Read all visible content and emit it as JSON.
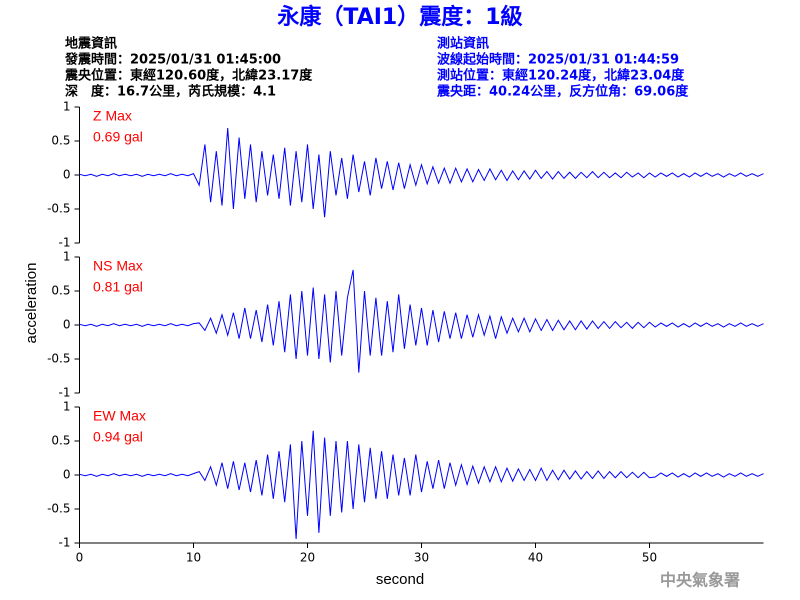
{
  "header": {
    "title": "永康（TAI1）震度：1級",
    "left": [
      "地震資訊",
      "發震時間：2025/01/31 01:45:00",
      "震央位置：東經120.60度，北緯23.17度",
      "深　度：16.7公里，芮氏規模：4.1"
    ],
    "right": [
      "測站資訊",
      "波線起始時間：2025/01/31 01:44:59",
      "測站位置：東經120.24度，北緯23.04度",
      "震央距：40.24公里，反方位角：69.06度"
    ]
  },
  "footer": "中央氣象署",
  "chart_data": [
    {
      "type": "line",
      "annotations": [
        "Z Max",
        "0.69 gal"
      ],
      "color": "#0000ff",
      "xlim": [
        0,
        60
      ],
      "ylim": [
        -1,
        1
      ],
      "yticks": [
        1,
        0.5,
        0,
        -0.5,
        -1
      ],
      "x": [
        0,
        0.5,
        1,
        1.5,
        2,
        2.5,
        3,
        3.5,
        4,
        4.5,
        5,
        5.5,
        6,
        6.5,
        7,
        7.5,
        8,
        8.5,
        9,
        9.5,
        10,
        10.5,
        11,
        11.5,
        12,
        12.5,
        13,
        13.5,
        14,
        14.5,
        15,
        15.5,
        16,
        16.5,
        17,
        17.5,
        18,
        18.5,
        19,
        19.5,
        20,
        20.5,
        21,
        21.5,
        22,
        22.5,
        23,
        23.5,
        24,
        24.5,
        25,
        25.5,
        26,
        26.5,
        27,
        27.5,
        28,
        28.5,
        29,
        29.5,
        30,
        30.5,
        31,
        31.5,
        32,
        32.5,
        33,
        33.5,
        34,
        34.5,
        35,
        35.5,
        36,
        36.5,
        37,
        37.5,
        38,
        38.5,
        39,
        39.5,
        40,
        40.5,
        41,
        41.5,
        42,
        42.5,
        43,
        43.5,
        44,
        44.5,
        45,
        45.5,
        46,
        46.5,
        47,
        47.5,
        48,
        48.5,
        49,
        49.5,
        50,
        50.5,
        51,
        51.5,
        52,
        52.5,
        53,
        53.5,
        54,
        54.5,
        55,
        55.5,
        56,
        56.5,
        57,
        57.5,
        58,
        58.5,
        59,
        59.5,
        60
      ],
      "values": [
        0.01,
        -0.01,
        0.01,
        -0.02,
        0.01,
        -0.01,
        0.02,
        -0.01,
        0.01,
        -0.01,
        0.01,
        -0.02,
        0.01,
        -0.01,
        0.01,
        -0.01,
        0.02,
        -0.01,
        0.01,
        -0.01,
        0.02,
        -0.15,
        0.45,
        -0.4,
        0.35,
        -0.45,
        0.69,
        -0.5,
        0.55,
        -0.35,
        0.45,
        -0.4,
        0.35,
        -0.3,
        0.3,
        -0.35,
        0.4,
        -0.45,
        0.35,
        -0.4,
        0.45,
        -0.5,
        0.3,
        -0.62,
        0.35,
        -0.3,
        0.25,
        -0.35,
        0.3,
        -0.25,
        0.2,
        -0.3,
        0.25,
        -0.2,
        0.2,
        -0.22,
        0.18,
        -0.2,
        0.15,
        -0.15,
        0.15,
        -0.13,
        0.12,
        -0.12,
        0.1,
        -0.12,
        0.1,
        -0.1,
        0.09,
        -0.1,
        0.08,
        -0.08,
        0.09,
        -0.07,
        0.07,
        -0.08,
        0.06,
        -0.07,
        0.06,
        -0.06,
        0.07,
        -0.05,
        0.05,
        -0.06,
        0.05,
        -0.05,
        0.04,
        -0.05,
        0.04,
        -0.04,
        0.05,
        -0.04,
        0.04,
        -0.04,
        0.03,
        -0.04,
        0.04,
        -0.03,
        0.03,
        -0.04,
        0.03,
        -0.03,
        0.03,
        -0.02,
        0.03,
        -0.03,
        0.02,
        -0.03,
        0.03,
        -0.02,
        0.03,
        -0.02,
        0.02,
        -0.03,
        0.02,
        -0.02,
        0.03,
        -0.02,
        0.02,
        -0.02,
        0.02
      ]
    },
    {
      "type": "line",
      "annotations": [
        "NS Max",
        "0.81 gal"
      ],
      "color": "#0000ff",
      "y_label": "acceleration",
      "xlim": [
        0,
        60
      ],
      "ylim": [
        -1,
        1
      ],
      "yticks": [
        1,
        0.5,
        0,
        -0.5,
        -1
      ],
      "x": [
        0,
        0.5,
        1,
        1.5,
        2,
        2.5,
        3,
        3.5,
        4,
        4.5,
        5,
        5.5,
        6,
        6.5,
        7,
        7.5,
        8,
        8.5,
        9,
        9.5,
        10,
        10.5,
        11,
        11.5,
        12,
        12.5,
        13,
        13.5,
        14,
        14.5,
        15,
        15.5,
        16,
        16.5,
        17,
        17.5,
        18,
        18.5,
        19,
        19.5,
        20,
        20.5,
        21,
        21.5,
        22,
        22.5,
        23,
        23.5,
        24,
        24.5,
        25,
        25.5,
        26,
        26.5,
        27,
        27.5,
        28,
        28.5,
        29,
        29.5,
        30,
        30.5,
        31,
        31.5,
        32,
        32.5,
        33,
        33.5,
        34,
        34.5,
        35,
        35.5,
        36,
        36.5,
        37,
        37.5,
        38,
        38.5,
        39,
        39.5,
        40,
        40.5,
        41,
        41.5,
        42,
        42.5,
        43,
        43.5,
        44,
        44.5,
        45,
        45.5,
        46,
        46.5,
        47,
        47.5,
        48,
        48.5,
        49,
        49.5,
        50,
        50.5,
        51,
        51.5,
        52,
        52.5,
        53,
        53.5,
        54,
        54.5,
        55,
        55.5,
        56,
        56.5,
        57,
        57.5,
        58,
        58.5,
        59,
        59.5,
        60
      ],
      "values": [
        0.01,
        -0.01,
        0.01,
        -0.02,
        0.01,
        -0.01,
        0.02,
        -0.01,
        0.01,
        -0.01,
        0.01,
        -0.02,
        0.01,
        -0.01,
        0.01,
        -0.01,
        0.02,
        -0.01,
        0.01,
        -0.01,
        0.02,
        0.03,
        -0.08,
        0.1,
        -0.12,
        0.15,
        -0.15,
        0.18,
        -0.2,
        0.25,
        -0.2,
        0.22,
        -0.25,
        0.3,
        -0.3,
        0.35,
        -0.4,
        0.45,
        -0.5,
        0.5,
        -0.45,
        0.55,
        -0.5,
        0.45,
        -0.55,
        0.5,
        -0.45,
        0.4,
        0.81,
        -0.7,
        0.5,
        -0.45,
        0.4,
        -0.45,
        0.35,
        -0.4,
        0.45,
        -0.35,
        0.3,
        -0.3,
        0.25,
        -0.3,
        0.22,
        -0.25,
        0.2,
        -0.2,
        0.18,
        -0.2,
        0.15,
        -0.18,
        0.15,
        -0.15,
        0.13,
        -0.2,
        0.12,
        -0.12,
        0.1,
        -0.1,
        0.1,
        -0.1,
        0.09,
        -0.08,
        0.08,
        -0.08,
        0.07,
        -0.07,
        0.06,
        -0.07,
        0.06,
        -0.06,
        0.06,
        -0.05,
        0.05,
        -0.05,
        0.05,
        -0.04,
        0.04,
        -0.05,
        0.04,
        -0.04,
        0.04,
        -0.03,
        0.03,
        -0.02,
        0.03,
        -0.03,
        0.02,
        -0.03,
        0.03,
        -0.02,
        0.03,
        -0.02,
        0.02,
        -0.03,
        0.02,
        -0.02,
        0.03,
        -0.02,
        0.02,
        -0.02,
        0.02
      ]
    },
    {
      "type": "line",
      "annotations": [
        "EW Max",
        "0.94 gal"
      ],
      "color": "#0000ff",
      "x_label": "second",
      "xlim": [
        0,
        60
      ],
      "xticks": [
        0,
        10,
        20,
        30,
        40,
        50
      ],
      "ylim": [
        -1,
        1
      ],
      "yticks": [
        1,
        0.5,
        0,
        -0.5,
        -1
      ],
      "x": [
        0,
        0.5,
        1,
        1.5,
        2,
        2.5,
        3,
        3.5,
        4,
        4.5,
        5,
        5.5,
        6,
        6.5,
        7,
        7.5,
        8,
        8.5,
        9,
        9.5,
        10,
        10.5,
        11,
        11.5,
        12,
        12.5,
        13,
        13.5,
        14,
        14.5,
        15,
        15.5,
        16,
        16.5,
        17,
        17.5,
        18,
        18.5,
        19,
        19.5,
        20,
        20.5,
        21,
        21.5,
        22,
        22.5,
        23,
        23.5,
        24,
        24.5,
        25,
        25.5,
        26,
        26.5,
        27,
        27.5,
        28,
        28.5,
        29,
        29.5,
        30,
        30.5,
        31,
        31.5,
        32,
        32.5,
        33,
        33.5,
        34,
        34.5,
        35,
        35.5,
        36,
        36.5,
        37,
        37.5,
        38,
        38.5,
        39,
        39.5,
        40,
        40.5,
        41,
        41.5,
        42,
        42.5,
        43,
        43.5,
        44,
        44.5,
        45,
        45.5,
        46,
        46.5,
        47,
        47.5,
        48,
        48.5,
        49,
        49.5,
        50,
        50.5,
        51,
        51.5,
        52,
        52.5,
        53,
        53.5,
        54,
        54.5,
        55,
        55.5,
        56,
        56.5,
        57,
        57.5,
        58,
        58.5,
        59,
        59.5,
        60
      ],
      "values": [
        0.01,
        -0.01,
        0.01,
        -0.02,
        0.01,
        -0.01,
        0.02,
        -0.01,
        0.01,
        -0.01,
        0.01,
        -0.02,
        0.01,
        -0.01,
        0.01,
        -0.01,
        0.02,
        -0.01,
        0.01,
        -0.01,
        0.02,
        0.05,
        -0.08,
        0.12,
        -0.15,
        0.18,
        -0.2,
        0.2,
        -0.22,
        0.18,
        -0.25,
        0.22,
        -0.3,
        0.3,
        -0.35,
        0.35,
        -0.4,
        0.45,
        -0.94,
        0.5,
        -0.6,
        0.65,
        -0.85,
        0.55,
        -0.6,
        0.5,
        -0.55,
        0.5,
        -0.5,
        0.45,
        -0.4,
        0.4,
        -0.35,
        0.35,
        -0.35,
        0.3,
        -0.3,
        0.25,
        -0.3,
        0.3,
        -0.25,
        0.2,
        -0.2,
        0.22,
        -0.2,
        0.18,
        -0.15,
        0.15,
        -0.14,
        0.13,
        -0.12,
        0.12,
        -0.1,
        0.12,
        -0.1,
        0.1,
        -0.09,
        0.09,
        -0.08,
        0.08,
        -0.08,
        0.1,
        -0.08,
        0.07,
        -0.07,
        0.07,
        -0.06,
        0.06,
        -0.06,
        0.05,
        -0.05,
        0.06,
        -0.05,
        0.05,
        -0.04,
        0.05,
        -0.04,
        0.04,
        -0.04,
        0.04,
        -0.04,
        -0.03,
        0.03,
        -0.02,
        0.03,
        -0.03,
        0.02,
        -0.03,
        0.03,
        -0.02,
        0.03,
        -0.02,
        0.02,
        -0.03,
        0.02,
        -0.02,
        0.03,
        -0.02,
        0.02,
        -0.02,
        0.02
      ]
    }
  ]
}
